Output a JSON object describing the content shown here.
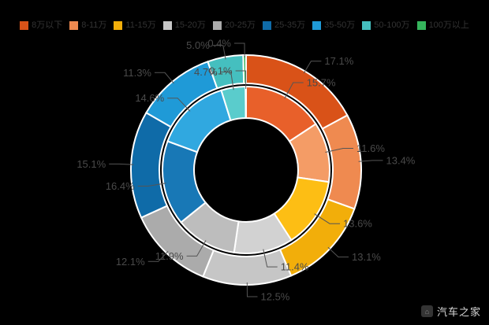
{
  "page": {
    "background": "#000000",
    "label_color": "#4a4a4a",
    "leader_color": "#555555",
    "legend_text_color": "#333333"
  },
  "legend": {
    "items": [
      "8万以下",
      "8-11万",
      "11-15万",
      "15-20万",
      "20-25万",
      "25-35万",
      "35-50万",
      "50-100万",
      "100万以上"
    ]
  },
  "watermark": {
    "text": "汽车之家",
    "logo": "autohome-logo"
  },
  "chart_data": {
    "type": "pie",
    "subtype": "nested-donut",
    "title": "",
    "legend_position": "top",
    "label_format": "percent",
    "categories": [
      "8万以下",
      "8-11万",
      "11-15万",
      "15-20万",
      "20-25万",
      "25-35万",
      "35-50万",
      "50-100万",
      "100万以上"
    ],
    "series": [
      {
        "name": "outer-ring",
        "ring": "outer",
        "values": [
          17.1,
          13.4,
          13.1,
          12.5,
          12.1,
          15.1,
          11.3,
          5.0,
          0.4
        ]
      },
      {
        "name": "inner-ring",
        "ring": "inner",
        "values": [
          15.7,
          11.6,
          13.6,
          11.4,
          11.9,
          16.4,
          14.6,
          4.7,
          0.1
        ]
      }
    ],
    "colors_outer": [
      "#D95218",
      "#EF8A50",
      "#F2AE0A",
      "#C6C6C6",
      "#ABABAB",
      "#0F6BA8",
      "#1F9AD7",
      "#45BFBF",
      "#35B55C"
    ],
    "colors_inner": [
      "#E8602A",
      "#F49C66",
      "#FDBE14",
      "#D2D2D2",
      "#BDBDBD",
      "#1878B6",
      "#30A8E0",
      "#5ACCCC",
      "#4AC56E"
    ]
  }
}
